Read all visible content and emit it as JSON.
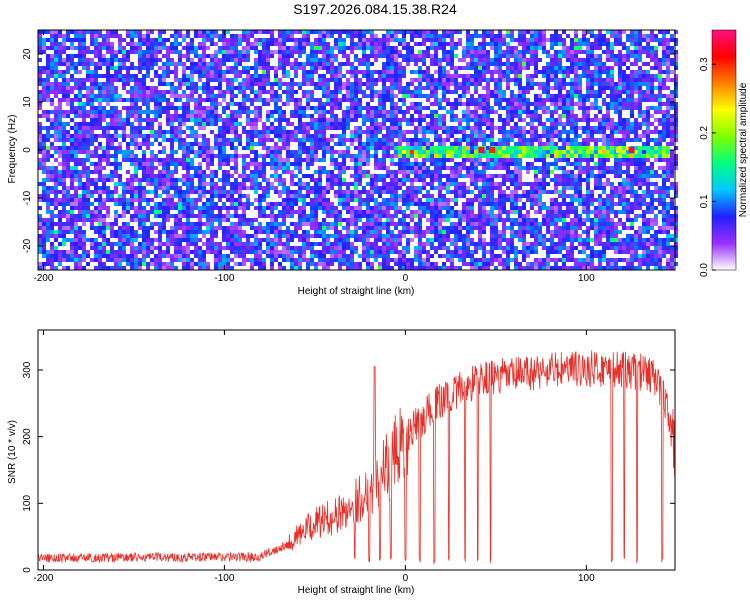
{
  "title": "S197.2026.084.15.38.R24",
  "chart_data": [
    {
      "type": "heatmap",
      "xlabel": "Height of straight line (km)",
      "ylabel": "Frequency (Hz)",
      "xlim": [
        -203,
        149
      ],
      "ylim": [
        -25,
        25
      ],
      "x_ticks": [
        -200,
        -100,
        0,
        100
      ],
      "y_ticks": [
        -20,
        -10,
        0,
        10,
        20
      ],
      "colorbar": {
        "label": "Normalized spectral amplitude",
        "range": [
          0.0,
          0.35
        ],
        "ticks": [
          0.0,
          0.1,
          0.2,
          0.3
        ],
        "colormap": [
          "#ffffff",
          "#9b30ff",
          "#2020ff",
          "#00c8ff",
          "#00ff80",
          "#7fff00",
          "#ffff00",
          "#ff8000",
          "#ff0000",
          "#ff1080"
        ]
      },
      "features": {
        "background_level": 0.05,
        "signal_frequency_hz": 0,
        "signal_x_range": [
          -5,
          145
        ],
        "signal_peak_level": 0.33
      }
    },
    {
      "type": "line",
      "xlabel": "Height of straight line (km)",
      "ylabel": "SNR (10 * v/v)",
      "xlim": [
        -203,
        149
      ],
      "ylim": [
        0,
        360
      ],
      "x_ticks": [
        -200,
        -100,
        0,
        100
      ],
      "y_ticks": [
        0,
        100,
        200,
        300
      ],
      "color": "#e8302a",
      "segments": [
        [
          -203,
          18
        ],
        [
          -80,
          20
        ],
        [
          -65,
          40
        ],
        [
          -50,
          70
        ],
        [
          -35,
          85
        ],
        [
          -20,
          120
        ],
        [
          -10,
          155
        ],
        [
          0,
          195
        ],
        [
          10,
          230
        ],
        [
          20,
          255
        ],
        [
          30,
          270
        ],
        [
          40,
          285
        ],
        [
          60,
          292
        ],
        [
          80,
          300
        ],
        [
          100,
          302
        ],
        [
          120,
          300
        ],
        [
          135,
          295
        ],
        [
          140,
          280
        ],
        [
          145,
          240
        ],
        [
          149,
          180
        ]
      ],
      "dropouts": [
        -28,
        -20,
        -14,
        -8,
        0,
        8,
        16,
        24,
        33,
        40,
        47,
        114,
        121,
        128,
        142
      ],
      "spike": {
        "x": -17,
        "y": 305
      }
    }
  ]
}
